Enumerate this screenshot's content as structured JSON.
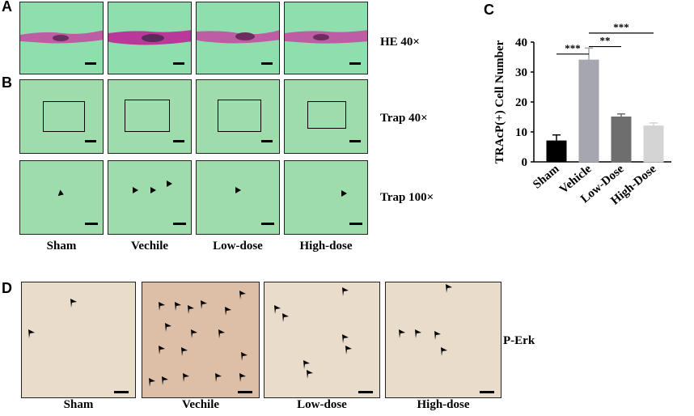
{
  "panel_letters": {
    "a": "A",
    "b": "B",
    "c": "C",
    "d": "D"
  },
  "rows": {
    "he": "HE 40×",
    "trap40": "Trap 40×",
    "trap100": "Trap 100×",
    "perk": "P-Erk"
  },
  "groups_top": [
    "Sham",
    "Vechile",
    "Low-dose",
    "High-dose"
  ],
  "groups_bottom": [
    "Sham",
    "Vechile",
    "Low-dose",
    "High-dose"
  ],
  "colors": {
    "sham": "#000000",
    "vehicle": "#a6a6ae",
    "low": "#6e6e6e",
    "high": "#d4d4d4",
    "he_bg": "#8fdfae",
    "trap_bg": "#9fdcac",
    "ihc_bg": "#e9dccb"
  },
  "chart_data": {
    "type": "bar",
    "categories": [
      "Sham",
      "Vehicle",
      "Low-Dose",
      "High-Dose"
    ],
    "values": [
      7,
      34,
      15,
      12
    ],
    "errors": [
      2,
      4,
      1,
      1
    ],
    "ylabel": "TRAcP(+) Cell Number",
    "ylim": [
      0,
      40
    ],
    "yticks": [
      "0",
      "10",
      "20",
      "30",
      "40"
    ],
    "significance": [
      {
        "from": "Sham",
        "to": "Vehicle",
        "label": "***"
      },
      {
        "from": "Vehicle",
        "to": "Low-Dose",
        "label": "**"
      },
      {
        "from": "Vehicle",
        "to": "High-Dose",
        "label": "***"
      }
    ]
  }
}
